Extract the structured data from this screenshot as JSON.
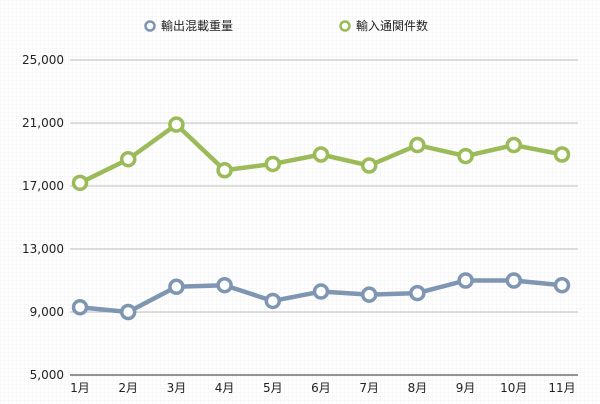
{
  "chart_data": {
    "type": "line",
    "categories": [
      "1月",
      "2月",
      "3月",
      "4月",
      "5月",
      "6月",
      "7月",
      "8月",
      "9月",
      "10月",
      "11月"
    ],
    "series": [
      {
        "name": "輸出混載重量",
        "color": "#7f96b3",
        "values": [
          9300,
          9000,
          10600,
          10700,
          9700,
          10300,
          10100,
          10200,
          11000,
          11000,
          10700
        ]
      },
      {
        "name": "輸入通関件数",
        "color": "#9bbb59",
        "values": [
          17200,
          18700,
          20900,
          18000,
          18400,
          19000,
          18300,
          19600,
          18900,
          19600,
          19000
        ]
      }
    ],
    "ylim": [
      5000,
      25000
    ],
    "yticks": [
      5000,
      9000,
      13000,
      17000,
      21000,
      25000
    ],
    "ytick_labels": [
      "5,000",
      "9,000",
      "13,000",
      "17,000",
      "21,000",
      "25,000"
    ],
    "grid": true,
    "legend": "top-center"
  }
}
